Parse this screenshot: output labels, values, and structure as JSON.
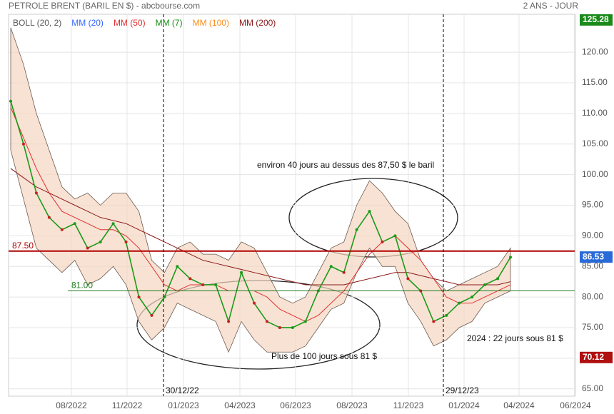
{
  "chart_data": {
    "type": "line",
    "title": "PETROLE BRENT (BARIL EN $) - abcbourse.com",
    "subtitle": "2 ANS - JOUR",
    "legend": [
      "BOLL (20, 2)",
      "MM (20)",
      "MM (50)",
      "MM (7)",
      "MM (100)",
      "MM (200)"
    ],
    "legend_colors": [
      "#555555",
      "#3366ff",
      "#e03030",
      "#109010",
      "#ff8c1a",
      "#8b1a1a"
    ],
    "xticks": [
      "08/2022",
      "11/2022",
      "01/2023",
      "04/2023",
      "06/2023",
      "08/2023",
      "11/2023",
      "01/2024",
      "04/2024",
      "06/2024"
    ],
    "ylim": [
      63.8,
      126.2
    ],
    "yticks": [
      {
        "value": 65,
        "label": "65.00"
      },
      {
        "value": 70,
        "label": "70.00"
      },
      {
        "value": 75,
        "label": "75.00"
      },
      {
        "value": 80,
        "label": "80.00"
      },
      {
        "value": 85,
        "label": "85.00"
      },
      {
        "value": 90,
        "label": "90.00"
      },
      {
        "value": 95,
        "label": "95.00"
      },
      {
        "value": 100,
        "label": "100.00"
      },
      {
        "value": 105,
        "label": "105.00"
      },
      {
        "value": 110,
        "label": "110.00"
      },
      {
        "value": 115,
        "label": "115.00"
      },
      {
        "value": 120,
        "label": "120.00"
      }
    ],
    "grid": true,
    "price": {
      "color": "#1a9a1a",
      "values": [
        112,
        105,
        97,
        93,
        91,
        92,
        88,
        89,
        92,
        89,
        80,
        77,
        80,
        85,
        83,
        82,
        82,
        76,
        84,
        79,
        76,
        75,
        75,
        76,
        81,
        85,
        84,
        91,
        94,
        89,
        90,
        83,
        81,
        76,
        77,
        79,
        80,
        82,
        83,
        86.5
      ]
    },
    "bollinger": {
      "name": "BOLL (20, 2)",
      "color": "#f5d5c0",
      "upper": [
        124,
        118,
        110,
        104,
        98,
        96,
        97,
        95,
        97,
        97,
        94,
        86,
        84,
        88,
        89,
        87,
        87,
        86,
        89,
        88,
        84,
        80,
        79,
        80,
        84,
        88,
        89,
        95,
        99,
        97,
        94,
        92,
        86,
        83,
        81,
        82,
        83,
        84,
        85,
        88
      ]
    },
    "bollinger_lower": [
      104,
      96,
      88,
      86,
      84,
      86,
      82,
      83,
      85,
      82,
      76,
      73,
      75,
      79,
      78,
      77,
      76,
      71,
      76,
      73,
      71,
      71,
      71,
      72,
      75,
      78,
      79,
      84,
      88,
      85,
      85,
      79,
      76,
      72,
      73,
      75,
      76,
      79,
      80,
      81
    ],
    "mas": [
      {
        "name": "MM (50)",
        "color": "#e03030",
        "values": [
          111,
          106,
          101,
          97,
          94,
          93,
          92,
          91,
          91,
          90,
          88,
          85,
          82,
          81,
          82,
          82,
          82,
          81,
          81,
          81,
          80,
          78,
          77,
          76,
          77,
          79,
          81,
          84,
          87,
          89,
          90,
          88,
          86,
          83,
          80,
          79,
          79,
          80,
          81,
          82
        ]
      },
      {
        "name": "MM (200)",
        "color": "#8b1a1a",
        "values": [
          101,
          99.5,
          98,
          97,
          96,
          95,
          94,
          93,
          92.5,
          92,
          91,
          90,
          89,
          88,
          87,
          86,
          85.5,
          85,
          84.5,
          84,
          83.5,
          83,
          82.5,
          82,
          82,
          82,
          82,
          82.5,
          83,
          83.5,
          84,
          84,
          83.5,
          83,
          82.5,
          82,
          82,
          82,
          82,
          82.5
        ]
      }
    ],
    "levels": [
      {
        "value": 87.5,
        "label": "87.50",
        "color": "#b00000"
      },
      {
        "value": 81,
        "label": "81.00",
        "color": "#1a7a1a"
      }
    ],
    "price_labels": [
      {
        "value": 125.28,
        "label": "125.28",
        "color": "#1a8a1a"
      },
      {
        "value": 86.53,
        "label": "86.53",
        "color": "#2a6ad8"
      },
      {
        "value": 70.12,
        "label": "70.12",
        "color": "#b01010"
      }
    ],
    "annotations": [
      "environ 40 jours au dessus des 87,50 $ le baril",
      "Plus de 100 jours sous 81 $",
      "2024 : 22 jours sous 81 $",
      "30/12/22",
      "29/12/23"
    ]
  }
}
